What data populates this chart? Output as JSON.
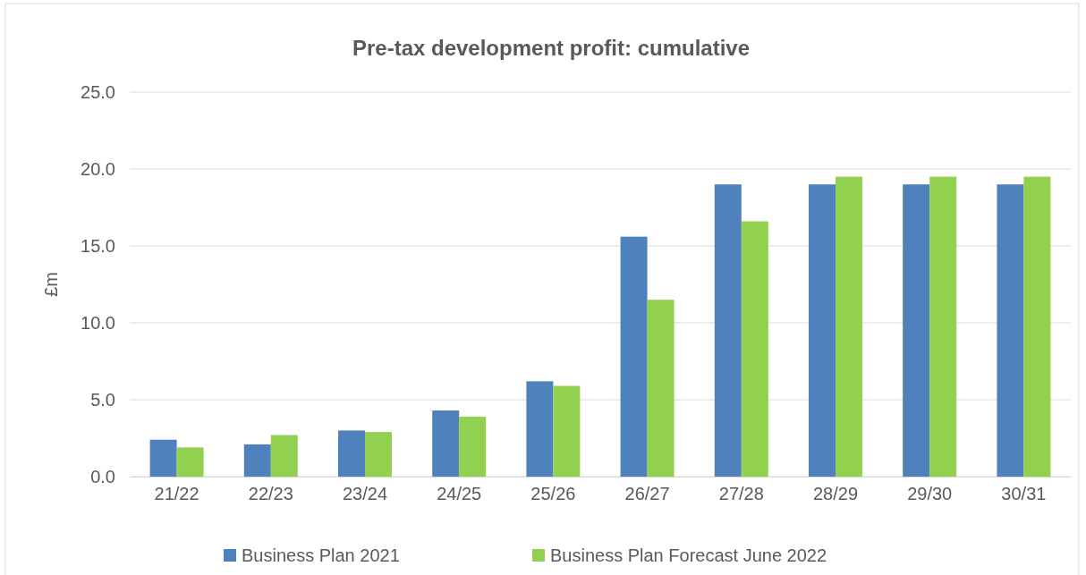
{
  "chart_data": {
    "type": "bar",
    "title": "Pre-tax development profit: cumulative",
    "ylabel": "£m",
    "categories": [
      "21/22",
      "22/23",
      "23/24",
      "24/25",
      "25/26",
      "26/27",
      "27/28",
      "28/29",
      "29/30",
      "30/31"
    ],
    "series": [
      {
        "name": "Business Plan 2021",
        "color": "#4f81bd",
        "values": [
          2.4,
          2.1,
          3.0,
          4.3,
          6.2,
          15.6,
          19.0,
          19.0,
          19.0,
          19.0
        ]
      },
      {
        "name": "Business Plan Forecast June 2022",
        "color": "#92d050",
        "values": [
          1.9,
          2.7,
          2.9,
          3.9,
          5.9,
          11.5,
          16.6,
          19.5,
          19.5,
          19.5
        ]
      }
    ],
    "ylim": [
      0,
      25
    ],
    "yticks": [
      {
        "value": 0,
        "label": "0.0"
      },
      {
        "value": 5,
        "label": "5.0"
      },
      {
        "value": 10,
        "label": "10.0"
      },
      {
        "value": 15,
        "label": "15.0"
      },
      {
        "value": 20,
        "label": "20.0"
      },
      {
        "value": 25,
        "label": "25.0"
      }
    ],
    "grid": "y",
    "legend": "bottom"
  }
}
